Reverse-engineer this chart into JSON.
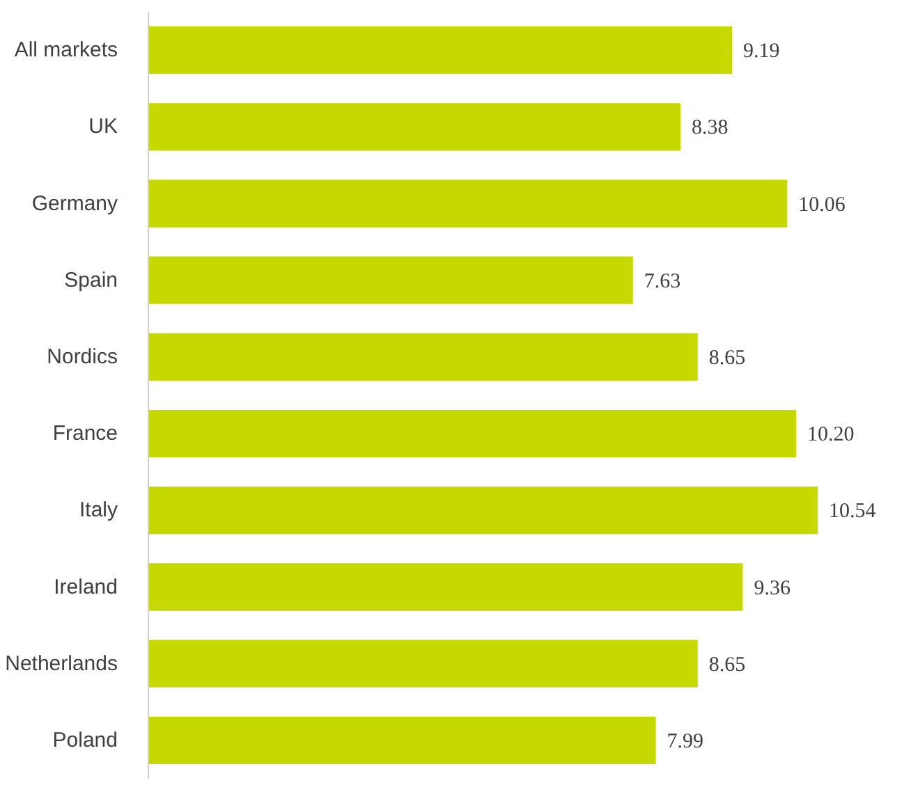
{
  "chart_data": {
    "type": "bar",
    "orientation": "horizontal",
    "categories": [
      "All markets",
      "UK",
      "Germany",
      "Spain",
      "Nordics",
      "France",
      "Italy",
      "Ireland",
      "Netherlands",
      "Poland"
    ],
    "values": [
      9.19,
      8.38,
      10.06,
      7.63,
      8.65,
      10.2,
      10.54,
      9.36,
      8.65,
      7.99
    ],
    "value_labels": [
      "9.19",
      "8.38",
      "10.06",
      "7.63",
      "8.65",
      "10.20",
      "10.54",
      "9.36",
      "8.65",
      "7.99"
    ],
    "color": "#c5d800"
  }
}
